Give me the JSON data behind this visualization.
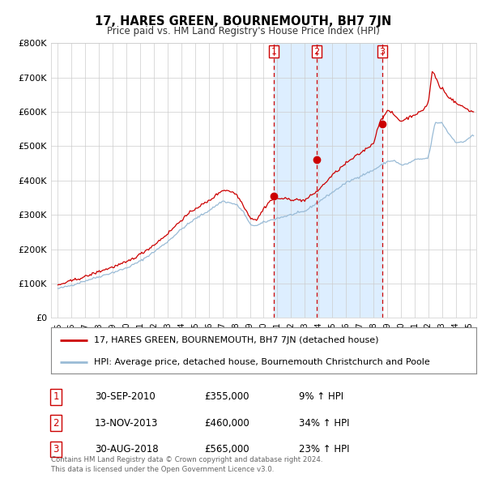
{
  "title": "17, HARES GREEN, BOURNEMOUTH, BH7 7JN",
  "subtitle": "Price paid vs. HM Land Registry's House Price Index (HPI)",
  "legend_line1": "17, HARES GREEN, BOURNEMOUTH, BH7 7JN (detached house)",
  "legend_line2": "HPI: Average price, detached house, Bournemouth Christchurch and Poole",
  "footer1": "Contains HM Land Registry data © Crown copyright and database right 2024.",
  "footer2": "This data is licensed under the Open Government Licence v3.0.",
  "transactions": [
    {
      "num": 1,
      "date": "30-SEP-2010",
      "price": "£355,000",
      "hpi_pct": "9%",
      "x_year": 2010.75
    },
    {
      "num": 2,
      "date": "13-NOV-2013",
      "price": "£460,000",
      "hpi_pct": "34%",
      "x_year": 2013.87
    },
    {
      "num": 3,
      "date": "30-AUG-2018",
      "price": "£565,000",
      "hpi_pct": "23%",
      "x_year": 2018.66
    }
  ],
  "marker_prices": [
    355000,
    460000,
    565000
  ],
  "shaded_region": [
    2010.75,
    2018.66
  ],
  "red_color": "#cc0000",
  "blue_color": "#99bbd6",
  "shaded_color": "#ddeeff",
  "background_color": "#ffffff",
  "grid_color": "#cccccc",
  "ylim": [
    0,
    800000
  ],
  "xlim_start": 1994.5,
  "xlim_end": 2025.5,
  "yticks": [
    0,
    100000,
    200000,
    300000,
    400000,
    500000,
    600000,
    700000,
    800000
  ],
  "xticks": [
    1995,
    1996,
    1997,
    1998,
    1999,
    2000,
    2001,
    2002,
    2003,
    2004,
    2005,
    2006,
    2007,
    2008,
    2009,
    2010,
    2011,
    2012,
    2013,
    2014,
    2015,
    2016,
    2017,
    2018,
    2019,
    2020,
    2021,
    2022,
    2023,
    2024,
    2025
  ]
}
